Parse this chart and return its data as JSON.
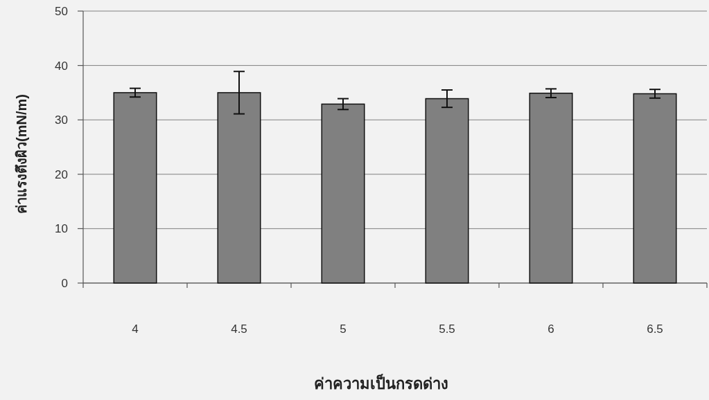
{
  "chart_data": {
    "type": "bar",
    "xlabel": "ค่าความเป็นกรดด่าง",
    "ylabel": "ค่าแรงตึงผิว(mN/m)",
    "categories": [
      "4",
      "4.5",
      "5",
      "5.5",
      "6",
      "6.5"
    ],
    "values": [
      35,
      35,
      32.9,
      33.9,
      34.9,
      34.8
    ],
    "errors": [
      0.8,
      3.9,
      1,
      1.6,
      0.8,
      0.8
    ],
    "color": "#808080",
    "ylim": [
      0,
      50
    ],
    "yticks": [
      0,
      10,
      20,
      30,
      40,
      50
    ],
    "grid": "y"
  }
}
